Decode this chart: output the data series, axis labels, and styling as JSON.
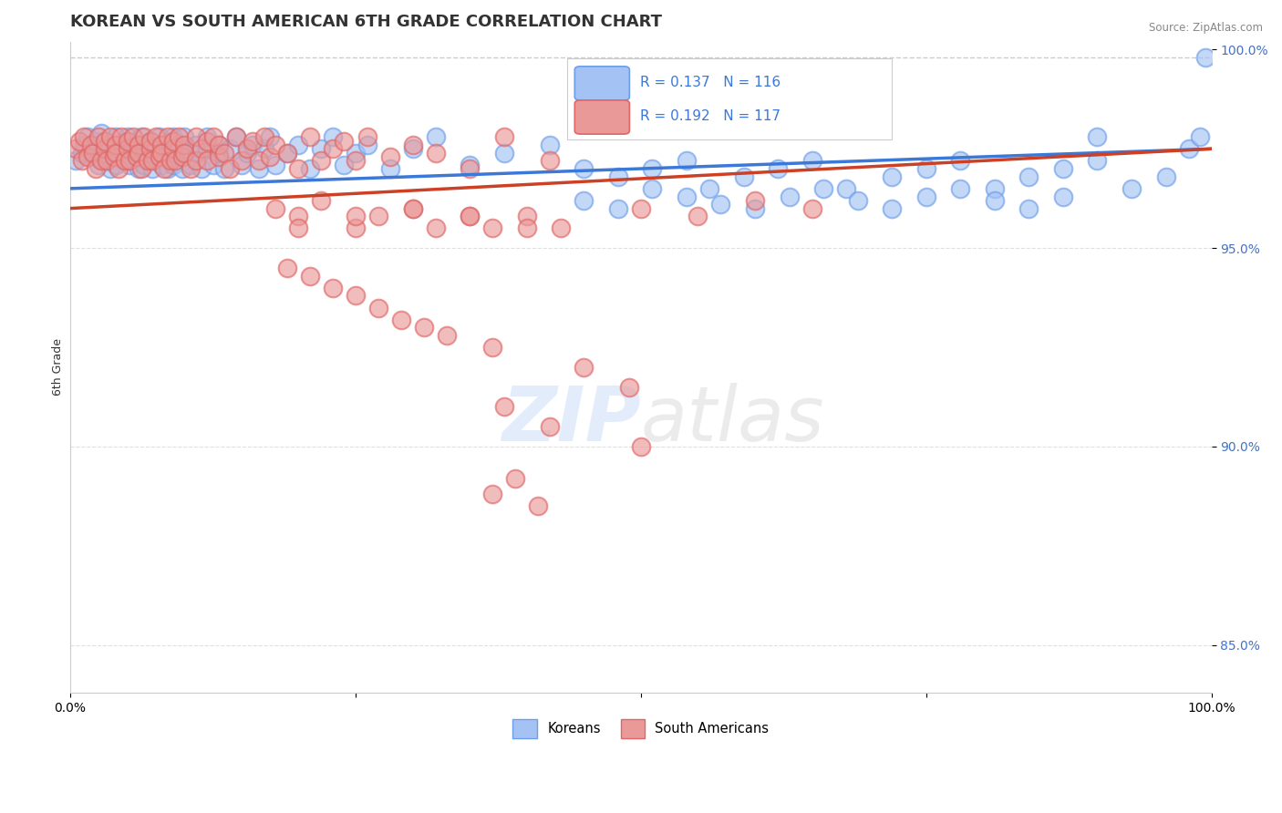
{
  "title": "KOREAN VS SOUTH AMERICAN 6TH GRADE CORRELATION CHART",
  "source": "Source: ZipAtlas.com",
  "ylabel": "6th Grade",
  "xlim": [
    0.0,
    1.0
  ],
  "ylim": [
    0.838,
    1.002
  ],
  "yticks": [
    0.85,
    0.9,
    0.95,
    1.0
  ],
  "ytick_labels": [
    "85.0%",
    "90.0%",
    "95.0%",
    "100.0%"
  ],
  "xticks": [
    0.0,
    0.25,
    0.5,
    0.75,
    1.0
  ],
  "xtick_labels": [
    "0.0%",
    "",
    "",
    "",
    "100.0%"
  ],
  "legend_r1": "R = 0.137",
  "legend_n1": "N = 116",
  "legend_r2": "R = 0.192",
  "legend_n2": "N = 117",
  "legend_label1": "Koreans",
  "legend_label2": "South Americans",
  "korean_color": "#a4c2f4",
  "korean_edge": "#6d9eeb",
  "sa_color": "#ea9999",
  "sa_edge": "#e06666",
  "trend_korean_color": "#3c78d8",
  "trend_sa_color": "#cc4125",
  "dashed_line_color": "#cccccc",
  "background_color": "#ffffff",
  "title_fontsize": 13,
  "axis_label_fontsize": 9,
  "tick_label_color": "#4472c4",
  "watermark_color": "#c9daf8",
  "koreans_x": [
    0.005,
    0.01,
    0.012,
    0.015,
    0.018,
    0.02,
    0.022,
    0.025,
    0.027,
    0.03,
    0.03,
    0.032,
    0.035,
    0.038,
    0.04,
    0.04,
    0.042,
    0.045,
    0.048,
    0.05,
    0.05,
    0.052,
    0.055,
    0.058,
    0.06,
    0.06,
    0.062,
    0.065,
    0.068,
    0.07,
    0.07,
    0.072,
    0.075,
    0.078,
    0.08,
    0.08,
    0.082,
    0.085,
    0.088,
    0.09,
    0.09,
    0.092,
    0.095,
    0.098,
    0.1,
    0.1,
    0.105,
    0.11,
    0.11,
    0.115,
    0.12,
    0.12,
    0.125,
    0.13,
    0.13,
    0.135,
    0.14,
    0.145,
    0.15,
    0.155,
    0.16,
    0.165,
    0.17,
    0.175,
    0.18,
    0.19,
    0.2,
    0.21,
    0.22,
    0.23,
    0.24,
    0.25,
    0.26,
    0.28,
    0.3,
    0.32,
    0.35,
    0.38,
    0.42,
    0.45,
    0.48,
    0.51,
    0.54,
    0.56,
    0.59,
    0.62,
    0.65,
    0.68,
    0.72,
    0.75,
    0.78,
    0.81,
    0.84,
    0.87,
    0.9,
    0.93,
    0.96,
    0.98,
    0.99,
    0.995,
    0.45,
    0.48,
    0.51,
    0.54,
    0.57,
    0.6,
    0.63,
    0.66,
    0.69,
    0.72,
    0.75,
    0.78,
    0.81,
    0.84,
    0.87,
    0.9
  ],
  "koreans_y": [
    0.972,
    0.974,
    0.976,
    0.978,
    0.975,
    0.973,
    0.977,
    0.971,
    0.979,
    0.972,
    0.974,
    0.976,
    0.97,
    0.975,
    0.978,
    0.971,
    0.974,
    0.976,
    0.972,
    0.975,
    0.978,
    0.971,
    0.974,
    0.976,
    0.97,
    0.975,
    0.978,
    0.971,
    0.974,
    0.973,
    0.977,
    0.97,
    0.975,
    0.978,
    0.971,
    0.974,
    0.976,
    0.97,
    0.975,
    0.978,
    0.971,
    0.974,
    0.976,
    0.97,
    0.975,
    0.978,
    0.971,
    0.974,
    0.976,
    0.97,
    0.975,
    0.978,
    0.971,
    0.974,
    0.976,
    0.97,
    0.975,
    0.978,
    0.971,
    0.974,
    0.976,
    0.97,
    0.975,
    0.978,
    0.971,
    0.974,
    0.976,
    0.97,
    0.975,
    0.978,
    0.971,
    0.974,
    0.976,
    0.97,
    0.975,
    0.978,
    0.971,
    0.974,
    0.976,
    0.97,
    0.968,
    0.97,
    0.972,
    0.965,
    0.968,
    0.97,
    0.972,
    0.965,
    0.968,
    0.97,
    0.972,
    0.965,
    0.968,
    0.97,
    0.972,
    0.965,
    0.968,
    0.975,
    0.978,
    0.998,
    0.962,
    0.96,
    0.965,
    0.963,
    0.961,
    0.96,
    0.963,
    0.965,
    0.962,
    0.96,
    0.963,
    0.965,
    0.962,
    0.96,
    0.963,
    0.978
  ],
  "sa_x": [
    0.005,
    0.008,
    0.01,
    0.012,
    0.015,
    0.018,
    0.02,
    0.022,
    0.025,
    0.027,
    0.03,
    0.03,
    0.032,
    0.035,
    0.038,
    0.04,
    0.04,
    0.042,
    0.045,
    0.048,
    0.05,
    0.05,
    0.052,
    0.055,
    0.058,
    0.06,
    0.06,
    0.062,
    0.065,
    0.068,
    0.07,
    0.07,
    0.072,
    0.075,
    0.078,
    0.08,
    0.08,
    0.082,
    0.085,
    0.088,
    0.09,
    0.09,
    0.092,
    0.095,
    0.098,
    0.1,
    0.1,
    0.105,
    0.11,
    0.11,
    0.115,
    0.12,
    0.12,
    0.125,
    0.13,
    0.13,
    0.135,
    0.14,
    0.145,
    0.15,
    0.155,
    0.16,
    0.165,
    0.17,
    0.175,
    0.18,
    0.19,
    0.2,
    0.21,
    0.22,
    0.23,
    0.24,
    0.25,
    0.26,
    0.28,
    0.3,
    0.32,
    0.35,
    0.38,
    0.42,
    0.18,
    0.2,
    0.22,
    0.25,
    0.27,
    0.3,
    0.32,
    0.35,
    0.37,
    0.4,
    0.43,
    0.5,
    0.55,
    0.6,
    0.65,
    0.4,
    0.35,
    0.3,
    0.25,
    0.2,
    0.19,
    0.21,
    0.23,
    0.25,
    0.27,
    0.29,
    0.31,
    0.33,
    0.37,
    0.45,
    0.49,
    0.38,
    0.42,
    0.5,
    0.39,
    0.37,
    0.41
  ],
  "sa_y": [
    0.975,
    0.977,
    0.972,
    0.978,
    0.973,
    0.976,
    0.974,
    0.97,
    0.978,
    0.972,
    0.975,
    0.977,
    0.972,
    0.978,
    0.973,
    0.976,
    0.974,
    0.97,
    0.978,
    0.972,
    0.975,
    0.977,
    0.972,
    0.978,
    0.973,
    0.976,
    0.974,
    0.97,
    0.978,
    0.972,
    0.975,
    0.977,
    0.972,
    0.978,
    0.973,
    0.976,
    0.974,
    0.97,
    0.978,
    0.972,
    0.975,
    0.977,
    0.972,
    0.978,
    0.973,
    0.976,
    0.974,
    0.97,
    0.978,
    0.972,
    0.975,
    0.977,
    0.972,
    0.978,
    0.973,
    0.976,
    0.974,
    0.97,
    0.978,
    0.972,
    0.975,
    0.977,
    0.972,
    0.978,
    0.973,
    0.976,
    0.974,
    0.97,
    0.978,
    0.972,
    0.975,
    0.977,
    0.972,
    0.978,
    0.973,
    0.976,
    0.974,
    0.97,
    0.978,
    0.972,
    0.96,
    0.958,
    0.962,
    0.955,
    0.958,
    0.96,
    0.955,
    0.958,
    0.955,
    0.958,
    0.955,
    0.96,
    0.958,
    0.962,
    0.96,
    0.955,
    0.958,
    0.96,
    0.958,
    0.955,
    0.945,
    0.943,
    0.94,
    0.938,
    0.935,
    0.932,
    0.93,
    0.928,
    0.925,
    0.92,
    0.915,
    0.91,
    0.905,
    0.9,
    0.892,
    0.888,
    0.885
  ]
}
